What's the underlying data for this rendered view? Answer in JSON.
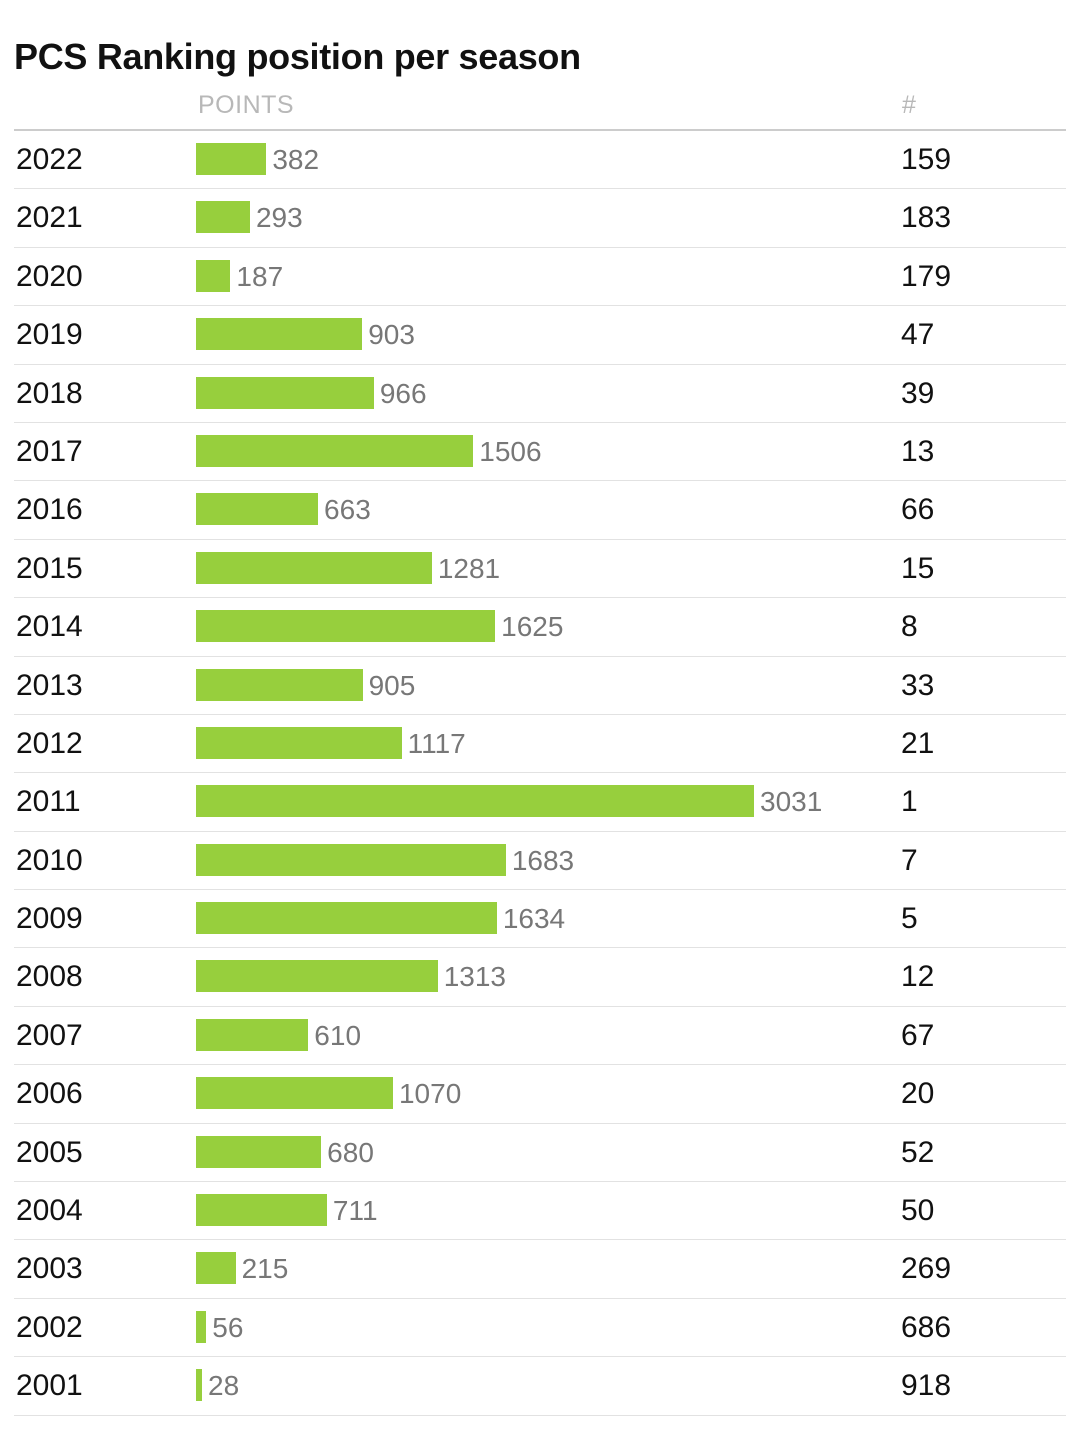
{
  "title": "PCS Ranking position per season",
  "columns": {
    "points": "POINTS",
    "rank": "#"
  },
  "colors": {
    "bar": "#97cf3d",
    "points_text": "#777777",
    "header_text": "#b8b8b8"
  },
  "chart_data": {
    "type": "bar",
    "orientation": "horizontal",
    "title": "PCS Ranking position per season",
    "categories": [
      "2022",
      "2021",
      "2020",
      "2019",
      "2018",
      "2017",
      "2016",
      "2015",
      "2014",
      "2013",
      "2012",
      "2011",
      "2010",
      "2009",
      "2008",
      "2007",
      "2006",
      "2005",
      "2004",
      "2003",
      "2002",
      "2001"
    ],
    "series": [
      {
        "name": "POINTS",
        "values": [
          382,
          293,
          187,
          903,
          966,
          1506,
          663,
          1281,
          1625,
          905,
          1117,
          3031,
          1683,
          1634,
          1313,
          610,
          1070,
          680,
          711,
          215,
          56,
          28
        ]
      },
      {
        "name": "#",
        "values": [
          159,
          183,
          179,
          47,
          39,
          13,
          66,
          15,
          8,
          33,
          21,
          1,
          7,
          5,
          12,
          67,
          20,
          52,
          50,
          269,
          686,
          918
        ]
      }
    ],
    "xlim": [
      0,
      3031
    ]
  }
}
